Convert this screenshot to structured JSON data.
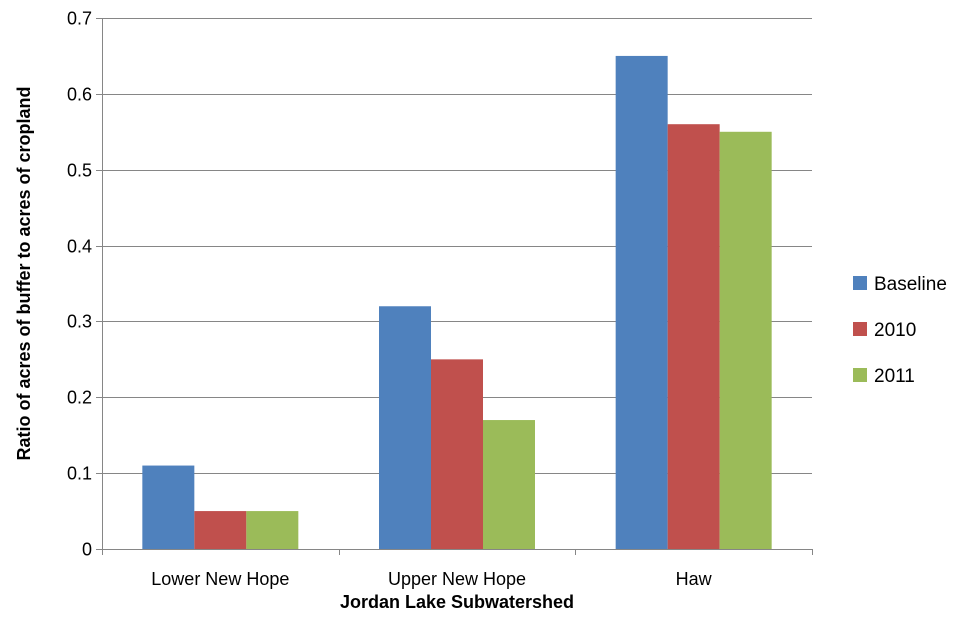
{
  "chart_data": {
    "type": "bar",
    "title": "",
    "xlabel": "Jordan Lake Subwatershed",
    "ylabel": "Ratio of acres of buffer to acres of cropland",
    "categories": [
      "Lower New Hope",
      "Upper New Hope",
      "Haw"
    ],
    "series": [
      {
        "name": "Baseline",
        "color": "#4F81BD",
        "values": [
          0.11,
          0.32,
          0.65
        ]
      },
      {
        "name": "2010",
        "color": "#C0504D",
        "values": [
          0.05,
          0.25,
          0.56
        ]
      },
      {
        "name": "2011",
        "color": "#9BBB59",
        "values": [
          0.05,
          0.17,
          0.55
        ]
      }
    ],
    "ylim": [
      0,
      0.7
    ],
    "yticks": [
      0,
      0.1,
      0.2,
      0.3,
      0.4,
      0.5,
      0.6,
      0.7
    ],
    "ytick_labels": [
      "0",
      "0.1",
      "0.2",
      "0.3",
      "0.4",
      "0.5",
      "0.6",
      "0.7"
    ],
    "grid": true,
    "legend_position": "right"
  }
}
